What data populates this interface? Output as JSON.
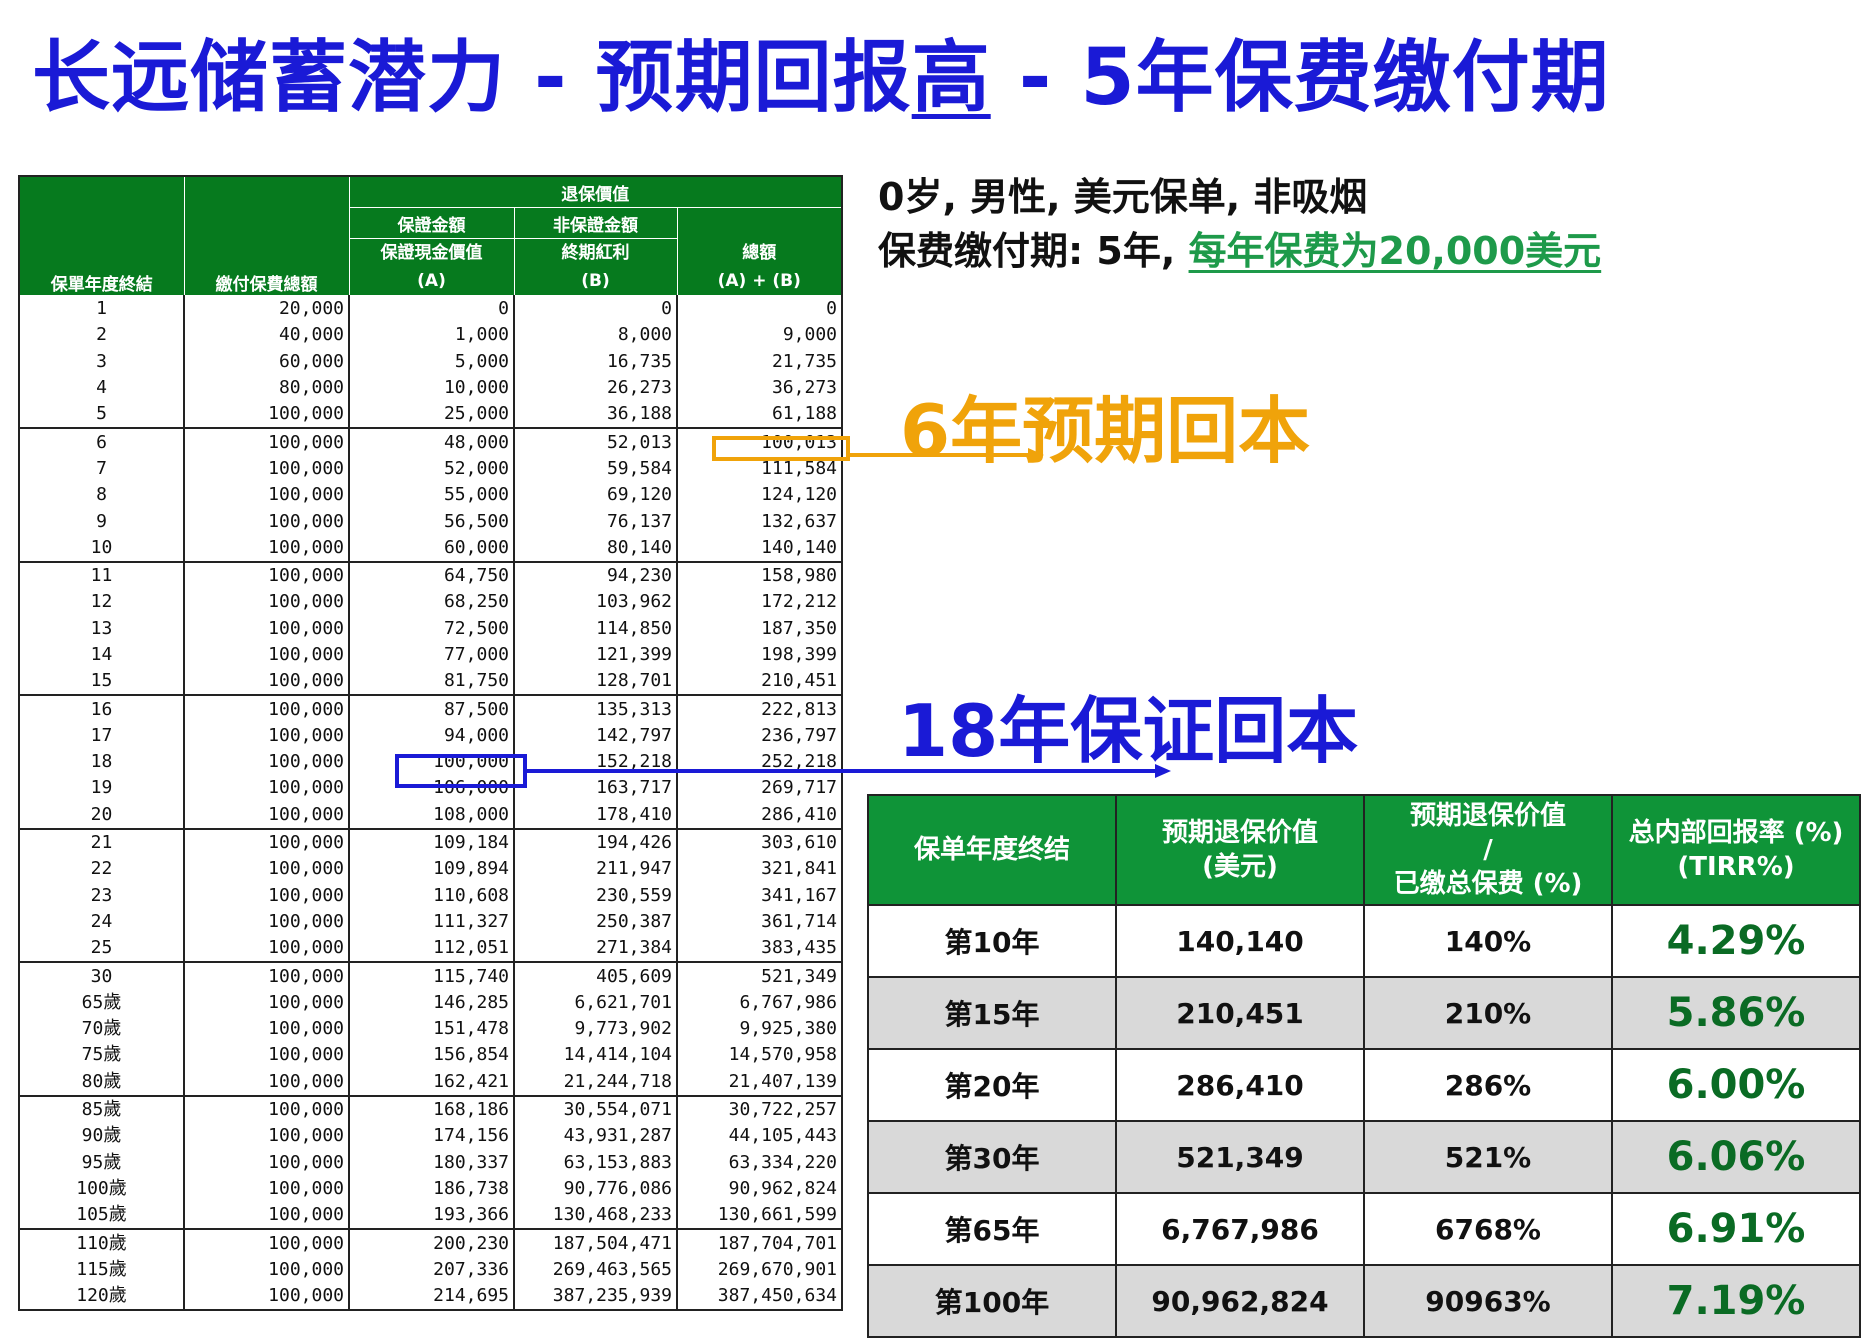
{
  "title": {
    "main": "长远储蓄潜力 - 预期回报",
    "highlight": "高",
    "suffix": " - 5年保费缴付期"
  },
  "info": {
    "line1": "0岁, 男性, 美元保单, 非吸烟",
    "line2_prefix": "保费缴付期: 5年, ",
    "line2_highlight": "每年保费为20,000美元"
  },
  "annotations": {
    "expected_breakeven": "6年预期回本",
    "guaranteed_breakeven": "18年保证回本"
  },
  "illustration_table": {
    "headers": {
      "year_end": "保單年度終結",
      "total_premium": "繳付保費總額",
      "surrender_value": "退保價值",
      "guaranteed": "保證金額",
      "non_guaranteed": "非保證金額",
      "guaranteed_cash_value": "保證現金價值",
      "col_a": "(A)",
      "terminal_bonus": "終期紅利",
      "col_b": "(B)",
      "total": "總額",
      "col_ab": "(A) + (B)"
    },
    "groups": [
      [
        [
          "1",
          "20,000",
          "0",
          "0",
          "0"
        ],
        [
          "2",
          "40,000",
          "1,000",
          "8,000",
          "9,000"
        ],
        [
          "3",
          "60,000",
          "5,000",
          "16,735",
          "21,735"
        ],
        [
          "4",
          "80,000",
          "10,000",
          "26,273",
          "36,273"
        ],
        [
          "5",
          "100,000",
          "25,000",
          "36,188",
          "61,188"
        ]
      ],
      [
        [
          "6",
          "100,000",
          "48,000",
          "52,013",
          "100,013"
        ],
        [
          "7",
          "100,000",
          "52,000",
          "59,584",
          "111,584"
        ],
        [
          "8",
          "100,000",
          "55,000",
          "69,120",
          "124,120"
        ],
        [
          "9",
          "100,000",
          "56,500",
          "76,137",
          "132,637"
        ],
        [
          "10",
          "100,000",
          "60,000",
          "80,140",
          "140,140"
        ]
      ],
      [
        [
          "11",
          "100,000",
          "64,750",
          "94,230",
          "158,980"
        ],
        [
          "12",
          "100,000",
          "68,250",
          "103,962",
          "172,212"
        ],
        [
          "13",
          "100,000",
          "72,500",
          "114,850",
          "187,350"
        ],
        [
          "14",
          "100,000",
          "77,000",
          "121,399",
          "198,399"
        ],
        [
          "15",
          "100,000",
          "81,750",
          "128,701",
          "210,451"
        ]
      ],
      [
        [
          "16",
          "100,000",
          "87,500",
          "135,313",
          "222,813"
        ],
        [
          "17",
          "100,000",
          "94,000",
          "142,797",
          "236,797"
        ],
        [
          "18",
          "100,000",
          "100,000",
          "152,218",
          "252,218"
        ],
        [
          "19",
          "100,000",
          "106,000",
          "163,717",
          "269,717"
        ],
        [
          "20",
          "100,000",
          "108,000",
          "178,410",
          "286,410"
        ]
      ],
      [
        [
          "21",
          "100,000",
          "109,184",
          "194,426",
          "303,610"
        ],
        [
          "22",
          "100,000",
          "109,894",
          "211,947",
          "321,841"
        ],
        [
          "23",
          "100,000",
          "110,608",
          "230,559",
          "341,167"
        ],
        [
          "24",
          "100,000",
          "111,327",
          "250,387",
          "361,714"
        ],
        [
          "25",
          "100,000",
          "112,051",
          "271,384",
          "383,435"
        ]
      ],
      [
        [
          "30",
          "100,000",
          "115,740",
          "405,609",
          "521,349"
        ],
        [
          "65歲",
          "100,000",
          "146,285",
          "6,621,701",
          "6,767,986"
        ],
        [
          "70歲",
          "100,000",
          "151,478",
          "9,773,902",
          "9,925,380"
        ],
        [
          "75歲",
          "100,000",
          "156,854",
          "14,414,104",
          "14,570,958"
        ],
        [
          "80歲",
          "100,000",
          "162,421",
          "21,244,718",
          "21,407,139"
        ]
      ],
      [
        [
          "85歲",
          "100,000",
          "168,186",
          "30,554,071",
          "30,722,257"
        ],
        [
          "90歲",
          "100,000",
          "174,156",
          "43,931,287",
          "44,105,443"
        ],
        [
          "95歲",
          "100,000",
          "180,337",
          "63,153,883",
          "63,334,220"
        ],
        [
          "100歲",
          "100,000",
          "186,738",
          "90,776,086",
          "90,962,824"
        ],
        [
          "105歲",
          "100,000",
          "193,366",
          "130,468,233",
          "130,661,599"
        ]
      ],
      [
        [
          "110歲",
          "100,000",
          "200,230",
          "187,504,471",
          "187,704,701"
        ],
        [
          "115歲",
          "100,000",
          "207,336",
          "269,463,565",
          "269,670,901"
        ],
        [
          "120歲",
          "100,000",
          "214,695",
          "387,235,939",
          "387,450,634"
        ]
      ]
    ]
  },
  "summary_table": {
    "headers": [
      [
        "保单年度终结"
      ],
      [
        "预期退保价值",
        "(美元)"
      ],
      [
        "预期退保价值",
        "/",
        "已缴总保费 (%)"
      ],
      [
        "总内部回报率 (%)",
        "(TIRR%)"
      ]
    ],
    "rows": [
      [
        "第10年",
        "140,140",
        "140%",
        "4.29%"
      ],
      [
        "第15年",
        "210,451",
        "210%",
        "5.86%"
      ],
      [
        "第20年",
        "286,410",
        "286%",
        "6.00%"
      ],
      [
        "第30年",
        "521,349",
        "521%",
        "6.06%"
      ],
      [
        "第65年",
        "6,767,986",
        "6768%",
        "6.91%"
      ],
      [
        "第100年",
        "90,962,824",
        "90963%",
        "7.19%"
      ]
    ]
  },
  "colors": {
    "title_blue": "#1a1ad6",
    "header_green": "#067a1e",
    "summary_green": "#0f9438",
    "orange": "#f0a30a",
    "tirr_green": "#0a6b24",
    "link_green": "#1e9a4a"
  }
}
